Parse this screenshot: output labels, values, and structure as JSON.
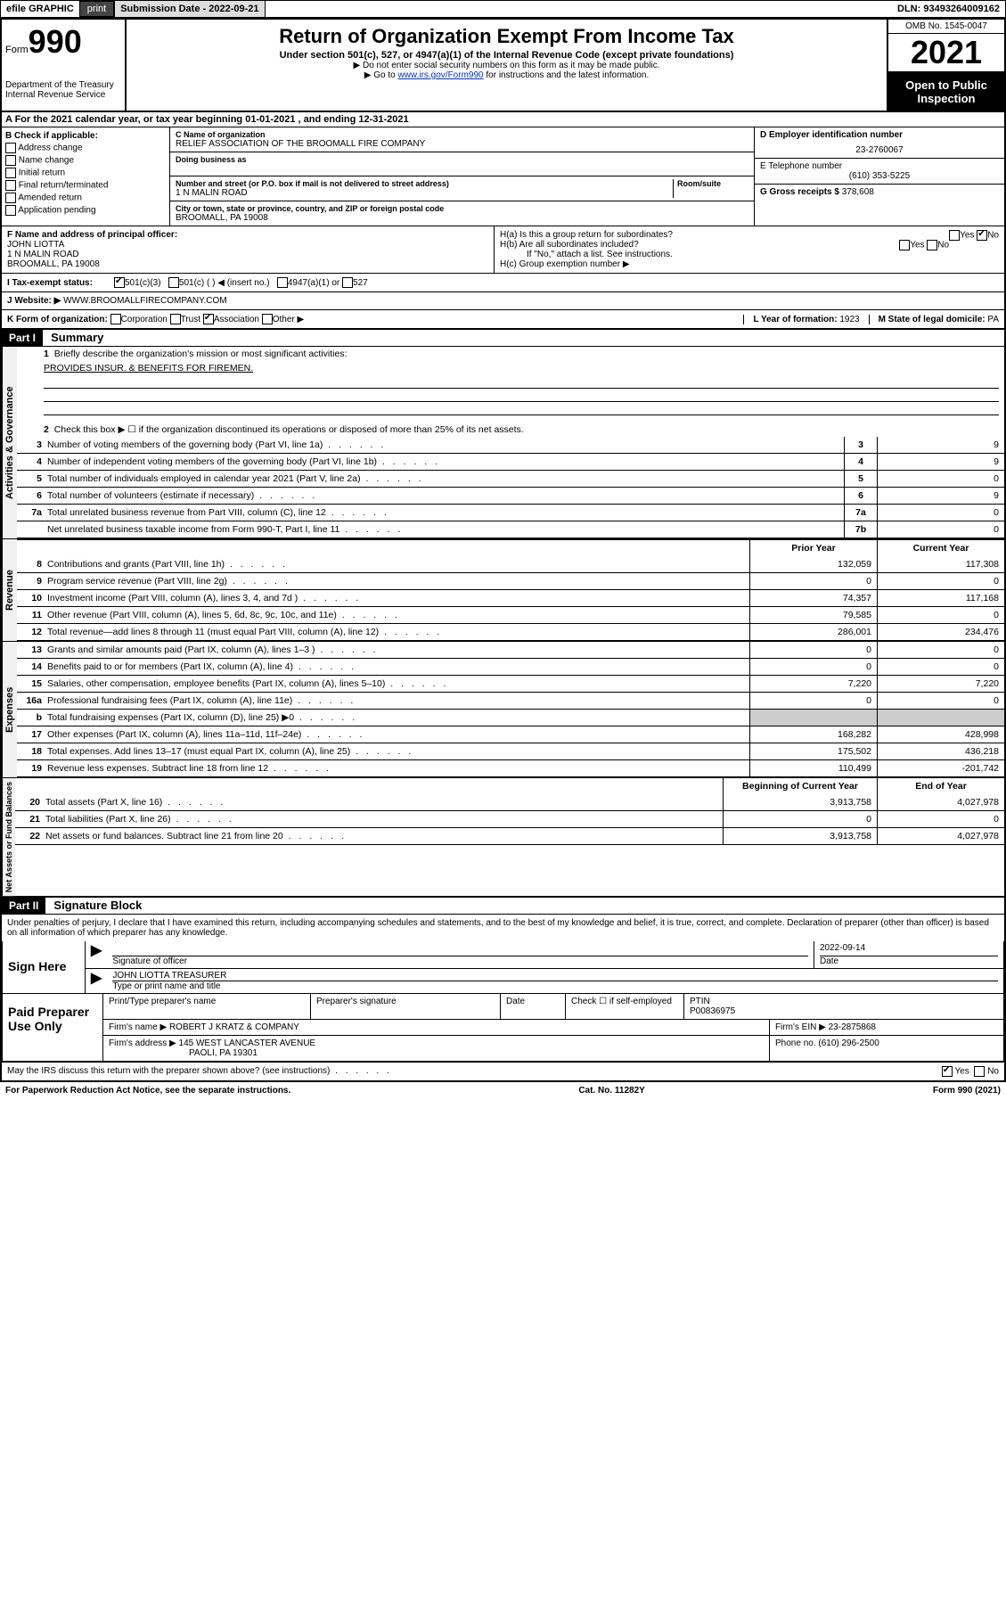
{
  "topbar": {
    "efile": "efile GRAPHIC",
    "print": "print",
    "sub_date_label": "Submission Date - ",
    "sub_date": "2022-09-21",
    "dln_label": "DLN: ",
    "dln": "93493264009162"
  },
  "header": {
    "form_label": "Form",
    "form_num": "990",
    "title": "Return of Organization Exempt From Income Tax",
    "subtitle": "Under section 501(c), 527, or 4947(a)(1) of the Internal Revenue Code (except private foundations)",
    "note1": "▶ Do not enter social security numbers on this form as it may be made public.",
    "note2_pre": "▶ Go to ",
    "note2_link": "www.irs.gov/Form990",
    "note2_post": " for instructions and the latest information.",
    "dept": "Department of the Treasury",
    "irs": "Internal Revenue Service",
    "omb": "OMB No. 1545-0047",
    "year": "2021",
    "open": "Open to Public Inspection"
  },
  "section_a": {
    "text_pre": "A For the 2021 calendar year, or tax year beginning ",
    "begin": "01-01-2021",
    "mid": "   , and ending ",
    "end": "12-31-2021"
  },
  "section_b": {
    "title": "B Check if applicable:",
    "opts": [
      "Address change",
      "Name change",
      "Initial return",
      "Final return/terminated",
      "Amended return",
      "Application pending"
    ]
  },
  "section_c": {
    "name_label": "C Name of organization",
    "name": "RELIEF ASSOCIATION OF THE BROOMALL FIRE COMPANY",
    "dba_label": "Doing business as",
    "addr_label": "Number and street (or P.O. box if mail is not delivered to street address)",
    "room_label": "Room/suite",
    "addr": "1 N MALIN ROAD",
    "city_label": "City or town, state or province, country, and ZIP or foreign postal code",
    "city": "BROOMALL, PA  19008"
  },
  "section_d": {
    "label": "D Employer identification number",
    "val": "23-2760067"
  },
  "section_e": {
    "label": "E Telephone number",
    "val": "(610) 353-5225"
  },
  "section_g": {
    "label": "G Gross receipts $ ",
    "val": "378,608"
  },
  "section_f": {
    "label": "F Name and address of principal officer:",
    "name": "JOHN LIOTTA",
    "addr": "1 N MALIN ROAD",
    "city": "BROOMALL, PA  19008"
  },
  "section_h": {
    "ha": "H(a)  Is this a group return for subordinates?",
    "hb": "H(b)  Are all subordinates included?",
    "hb_note": "If \"No,\" attach a list. See instructions.",
    "hc": "H(c)  Group exemption number ▶",
    "yes": "Yes",
    "no": "No"
  },
  "section_i": {
    "label": "I   Tax-exempt status:",
    "c3": "501(c)(3)",
    "c": "501(c) (  ) ◀ (insert no.)",
    "a1": "4947(a)(1) or",
    "s527": "527"
  },
  "section_j": {
    "label": "J   Website: ▶",
    "val": "WWW.BROOMALLFIRECOMPANY.COM"
  },
  "section_k": {
    "label": "K Form of organization:",
    "corp": "Corporation",
    "trust": "Trust",
    "assoc": "Association",
    "other": "Other ▶"
  },
  "section_l": {
    "label": "L Year of formation: ",
    "val": "1923"
  },
  "section_m": {
    "label": "M State of legal domicile: ",
    "val": "PA"
  },
  "part1": {
    "label": "Part I",
    "title": "Summary",
    "l1": "Briefly describe the organization's mission or most significant activities:",
    "mission": "PROVIDES INSUR. & BENEFITS FOR FIREMEN.",
    "l2": "Check this box ▶ ☐  if the organization discontinued its operations or disposed of more than 25% of its net assets.",
    "governance_label": "Activities & Governance",
    "revenue_label": "Revenue",
    "expenses_label": "Expenses",
    "net_label": "Net Assets or Fund Balances",
    "prior": "Prior Year",
    "current": "Current Year",
    "begin": "Beginning of Current Year",
    "end": "End of Year",
    "lines_gov": [
      {
        "n": "3",
        "t": "Number of voting members of the governing body (Part VI, line 1a)",
        "b": "3",
        "v": "9"
      },
      {
        "n": "4",
        "t": "Number of independent voting members of the governing body (Part VI, line 1b)",
        "b": "4",
        "v": "9"
      },
      {
        "n": "5",
        "t": "Total number of individuals employed in calendar year 2021 (Part V, line 2a)",
        "b": "5",
        "v": "0"
      },
      {
        "n": "6",
        "t": "Total number of volunteers (estimate if necessary)",
        "b": "6",
        "v": "9"
      },
      {
        "n": "7a",
        "t": "Total unrelated business revenue from Part VIII, column (C), line 12",
        "b": "7a",
        "v": "0"
      },
      {
        "n": "",
        "t": "Net unrelated business taxable income from Form 990-T, Part I, line 11",
        "b": "7b",
        "v": "0"
      }
    ],
    "lines_rev": [
      {
        "n": "8",
        "t": "Contributions and grants (Part VIII, line 1h)",
        "p": "132,059",
        "c": "117,308"
      },
      {
        "n": "9",
        "t": "Program service revenue (Part VIII, line 2g)",
        "p": "0",
        "c": "0"
      },
      {
        "n": "10",
        "t": "Investment income (Part VIII, column (A), lines 3, 4, and 7d )",
        "p": "74,357",
        "c": "117,168"
      },
      {
        "n": "11",
        "t": "Other revenue (Part VIII, column (A), lines 5, 6d, 8c, 9c, 10c, and 11e)",
        "p": "79,585",
        "c": "0"
      },
      {
        "n": "12",
        "t": "Total revenue—add lines 8 through 11 (must equal Part VIII, column (A), line 12)",
        "p": "286,001",
        "c": "234,476"
      }
    ],
    "lines_exp": [
      {
        "n": "13",
        "t": "Grants and similar amounts paid (Part IX, column (A), lines 1–3 )",
        "p": "0",
        "c": "0"
      },
      {
        "n": "14",
        "t": "Benefits paid to or for members (Part IX, column (A), line 4)",
        "p": "0",
        "c": "0"
      },
      {
        "n": "15",
        "t": "Salaries, other compensation, employee benefits (Part IX, column (A), lines 5–10)",
        "p": "7,220",
        "c": "7,220"
      },
      {
        "n": "16a",
        "t": "Professional fundraising fees (Part IX, column (A), line 11e)",
        "p": "0",
        "c": "0"
      },
      {
        "n": "b",
        "t": "Total fundraising expenses (Part IX, column (D), line 25) ▶0",
        "p": "",
        "c": "",
        "shade": true
      },
      {
        "n": "17",
        "t": "Other expenses (Part IX, column (A), lines 11a–11d, 11f–24e)",
        "p": "168,282",
        "c": "428,998"
      },
      {
        "n": "18",
        "t": "Total expenses. Add lines 13–17 (must equal Part IX, column (A), line 25)",
        "p": "175,502",
        "c": "436,218"
      },
      {
        "n": "19",
        "t": "Revenue less expenses. Subtract line 18 from line 12",
        "p": "110,499",
        "c": "-201,742"
      }
    ],
    "lines_net": [
      {
        "n": "20",
        "t": "Total assets (Part X, line 16)",
        "p": "3,913,758",
        "c": "4,027,978"
      },
      {
        "n": "21",
        "t": "Total liabilities (Part X, line 26)",
        "p": "0",
        "c": "0"
      },
      {
        "n": "22",
        "t": "Net assets or fund balances. Subtract line 21 from line 20",
        "p": "3,913,758",
        "c": "4,027,978"
      }
    ]
  },
  "part2": {
    "label": "Part II",
    "title": "Signature Block",
    "declaration": "Under penalties of perjury, I declare that I have examined this return, including accompanying schedules and statements, and to the best of my knowledge and belief, it is true, correct, and complete. Declaration of preparer (other than officer) is based on all information of which preparer has any knowledge.",
    "sign_here": "Sign Here",
    "sig_officer": "Signature of officer",
    "date": "Date",
    "sig_date": "2022-09-14",
    "officer_name": "JOHN LIOTTA TREASURER",
    "type_name": "Type or print name and title",
    "paid_prep": "Paid Preparer Use Only",
    "prep_name_label": "Print/Type preparer's name",
    "prep_sig_label": "Preparer's signature",
    "check_self": "Check ☐ if self-employed",
    "ptin_label": "PTIN",
    "ptin": "P00836975",
    "firm_name_label": "Firm's name   ▶",
    "firm_name": "ROBERT J KRATZ & COMPANY",
    "firm_ein_label": "Firm's EIN ▶",
    "firm_ein": "23-2875868",
    "firm_addr_label": "Firm's address ▶",
    "firm_addr": "145 WEST LANCASTER AVENUE",
    "firm_city": "PAOLI, PA  19301",
    "phone_label": "Phone no. ",
    "phone": "(610) 296-2500",
    "may_irs": "May the IRS discuss this return with the preparer shown above? (see instructions)",
    "paperwork": "For Paperwork Reduction Act Notice, see the separate instructions.",
    "cat": "Cat. No. 11282Y",
    "form_footer": "Form 990 (2021)"
  }
}
